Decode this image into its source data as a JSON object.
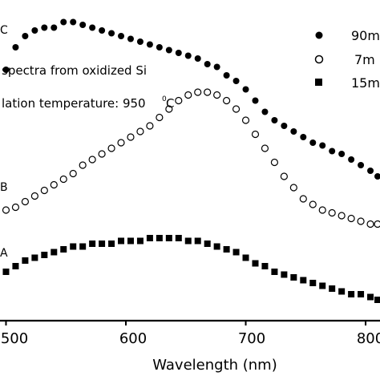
{
  "chart_data": {
    "type": "scatter",
    "xlabel": "Wavelength (nm)",
    "ylabel": "",
    "xlim": [
      495,
      812
    ],
    "ylim": [
      0,
      100
    ],
    "x_ticks": [
      500,
      600,
      700,
      800
    ],
    "x_tick_labels": [
      "500",
      "600",
      "700",
      "800"
    ],
    "annotations": [
      "spectra from oxidized Si",
      "lation temperature: 950",
      "0",
      "C"
    ],
    "curve_labels": [
      "C",
      "B",
      "A"
    ],
    "legend_position": "top-right",
    "grid": false,
    "series": [
      {
        "name": "90m",
        "curve_label": "C",
        "marker": "filled-circle",
        "x": [
          500,
          508,
          516,
          524,
          532,
          540,
          548,
          556,
          564,
          572,
          580,
          588,
          596,
          604,
          612,
          620,
          628,
          636,
          644,
          652,
          660,
          668,
          676,
          684,
          692,
          700,
          708,
          716,
          724,
          732,
          740,
          748,
          756,
          764,
          772,
          780,
          788,
          796,
          804,
          810
        ],
        "y": [
          78,
          86,
          90,
          92,
          93,
          93,
          95,
          95,
          94,
          93,
          92,
          91,
          90,
          89,
          88,
          87,
          86,
          85,
          84,
          83,
          82,
          80,
          79,
          76,
          74,
          71,
          67,
          63,
          60,
          58,
          56,
          54,
          52,
          51,
          49,
          48,
          46,
          44,
          42,
          40
        ]
      },
      {
        "name": "7m",
        "curve_label": "B",
        "marker": "open-circle",
        "x": [
          500,
          508,
          516,
          524,
          532,
          540,
          548,
          556,
          564,
          572,
          580,
          588,
          596,
          604,
          612,
          620,
          628,
          636,
          644,
          652,
          660,
          668,
          676,
          684,
          692,
          700,
          708,
          716,
          724,
          732,
          740,
          748,
          756,
          764,
          772,
          780,
          788,
          796,
          804,
          810
        ],
        "y": [
          28,
          29,
          31,
          33,
          35,
          37,
          39,
          41,
          44,
          46,
          48,
          50,
          52,
          54,
          56,
          58,
          61,
          64,
          67,
          69,
          70,
          70,
          69,
          67,
          64,
          60,
          55,
          50,
          45,
          40,
          36,
          32,
          30,
          28,
          27,
          26,
          25,
          24,
          23,
          23
        ]
      },
      {
        "name": "15m",
        "curve_label": "A",
        "marker": "filled-square",
        "x": [
          500,
          508,
          516,
          524,
          532,
          540,
          548,
          556,
          564,
          572,
          580,
          588,
          596,
          604,
          612,
          620,
          628,
          636,
          644,
          652,
          660,
          668,
          676,
          684,
          692,
          700,
          708,
          716,
          724,
          732,
          740,
          748,
          756,
          764,
          772,
          780,
          788,
          796,
          804,
          810
        ],
        "y": [
          6,
          8,
          10,
          11,
          12,
          13,
          14,
          15,
          15,
          16,
          16,
          16,
          17,
          17,
          17,
          18,
          18,
          18,
          18,
          17,
          17,
          16,
          15,
          14,
          13,
          11,
          9,
          8,
          6,
          5,
          4,
          3,
          2,
          1,
          0,
          -1,
          -2,
          -2,
          -3,
          -4
        ]
      }
    ]
  }
}
